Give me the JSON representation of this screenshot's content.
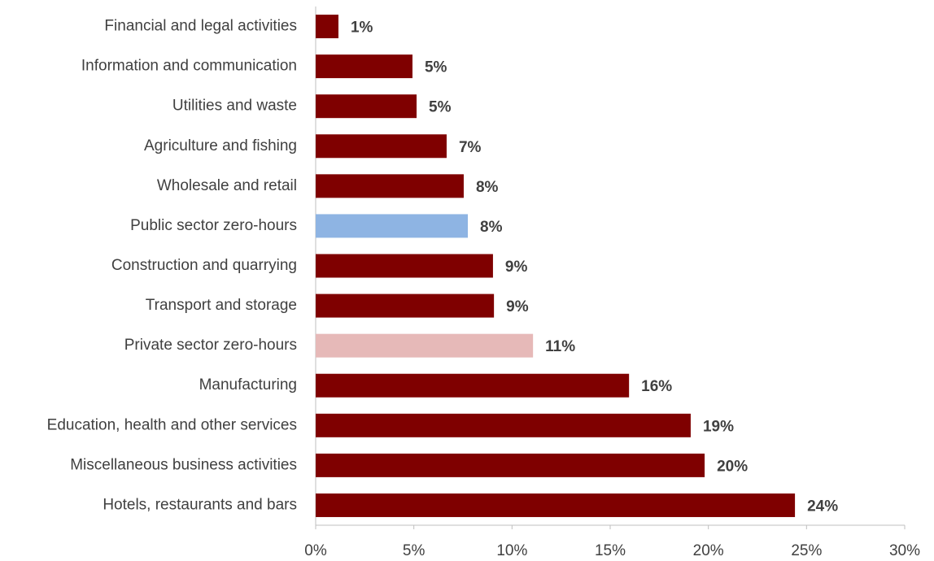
{
  "chart_data": {
    "type": "barh",
    "categories": [
      "Financial and legal activities",
      "Information and communication",
      "Utilities and waste",
      "Agriculture and fishing",
      "Wholesale and retail",
      "Public sector zero-hours",
      "Construction and quarrying",
      "Transport and storage",
      "Private sector zero-hours",
      "Manufacturing",
      "Education, health and other services",
      "Miscellaneous business activities",
      "Hotels, restaurants and bars"
    ],
    "values": [
      1.16,
      4.93,
      5.14,
      6.67,
      7.54,
      7.75,
      9.03,
      9.08,
      11.07,
      15.96,
      19.1,
      19.81,
      24.41
    ],
    "value_labels": [
      "1%",
      "5%",
      "5%",
      "7%",
      "8%",
      "8%",
      "9%",
      "9%",
      "11%",
      "16%",
      "19%",
      "20%",
      "24%"
    ],
    "colors": [
      "#7f0000",
      "#7f0000",
      "#7f0000",
      "#7f0000",
      "#7f0000",
      "#8eb4e3",
      "#7f0000",
      "#7f0000",
      "#e6b9b8",
      "#7f0000",
      "#7f0000",
      "#7f0000",
      "#7f0000"
    ],
    "xlim": [
      0,
      30
    ],
    "xticks": [
      {
        "value": 0,
        "label": "0%"
      },
      {
        "value": 5,
        "label": "5%"
      },
      {
        "value": 10,
        "label": "10%"
      },
      {
        "value": 15,
        "label": "15%"
      },
      {
        "value": 20,
        "label": "20%"
      },
      {
        "value": 25,
        "label": "25%"
      },
      {
        "value": 30,
        "label": "30%"
      }
    ]
  }
}
